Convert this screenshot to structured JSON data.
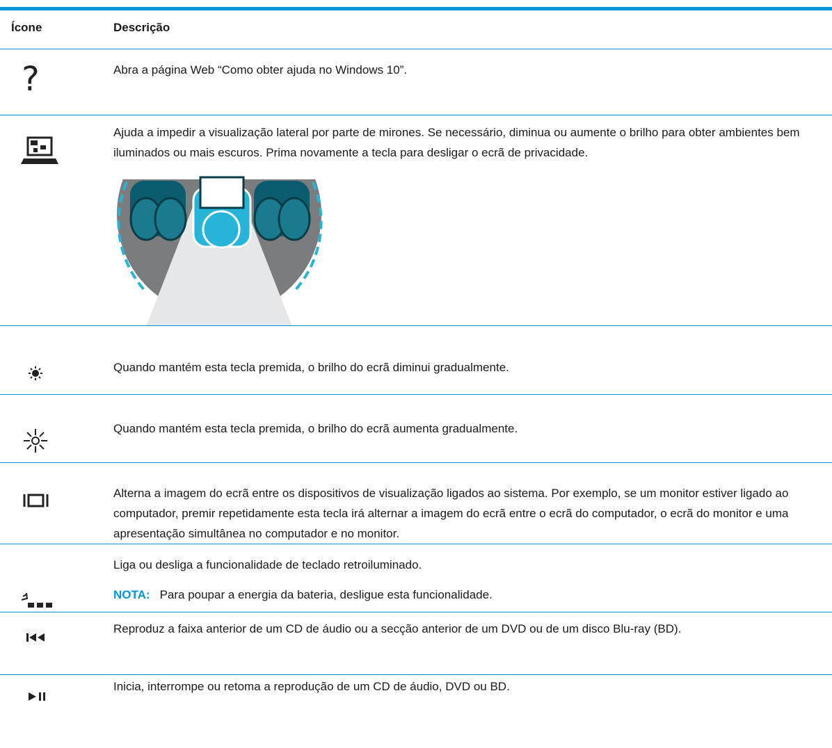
{
  "table": {
    "headers": [
      "Ícone",
      "Descrição"
    ],
    "rows": [
      {
        "description": "Abra a página Web “Como obter ajuda no Windows 10”."
      },
      {
        "description": "Ajuda a impedir a visualização lateral por parte de mirones. Se necessário, diminua ou aumente o brilho para obter ambientes bem iluminados ou mais escuros. Prima novamente a tecla para desligar o ecrã de privacidade."
      },
      {
        "description": "Quando mantém esta tecla premida, o brilho do ecrã diminui gradualmente."
      },
      {
        "description": "Quando mantém esta tecla premida, o brilho do ecrã aumenta gradualmente."
      },
      {
        "description": "Alterna a imagem do ecrã entre os dispositivos de visualização ligados ao sistema. Por exemplo, se um monitor estiver ligado ao computador, premir repetidamente esta tecla irá alternar a imagem do ecrã entre o ecrã do computador, o ecrã do monitor e uma apresentação simultânea no computador e no monitor."
      },
      {
        "description": "Liga ou desliga a funcionalidade de teclado retroiluminado.",
        "note_label": "NOTA:",
        "note": "Para poupar a energia da bateria, desligue esta funcionalidade."
      },
      {
        "description": "Reproduz a faixa anterior de um CD de áudio ou a secção anterior de um DVD ou de um disco Blu-ray (BD)."
      },
      {
        "description": "Inicia, interrompe ou retoma a reprodução de um CD de áudio, DVD ou BD."
      }
    ]
  }
}
